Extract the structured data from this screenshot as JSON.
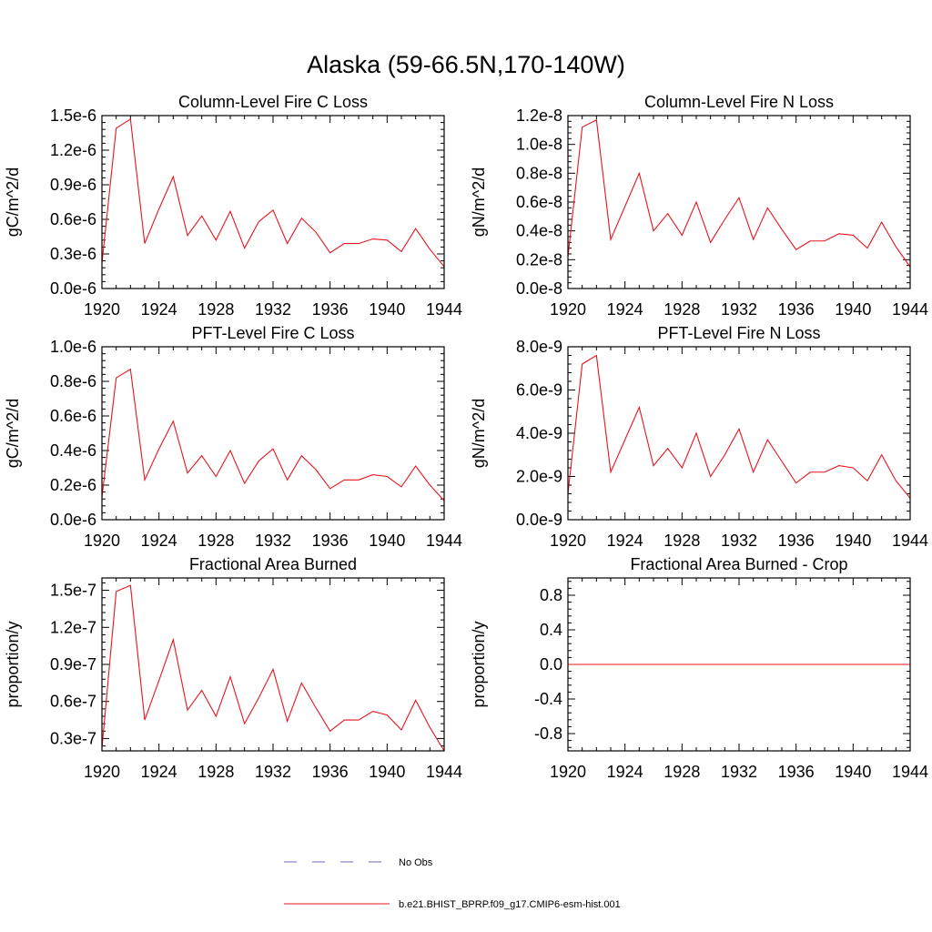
{
  "figure": {
    "title": "Alaska (59-66.5N,170-140W)"
  },
  "legend": {
    "entries": [
      {
        "label": "No Obs",
        "color": "#6b6bb8",
        "style": "dashed"
      },
      {
        "label": "b.e21.BHIST_BPRP.f09_g17.CMIP6-esm-hist.001",
        "color": "#e8141e",
        "style": "solid"
      }
    ]
  },
  "chart_data": [
    {
      "type": "line",
      "title": "Column-Level Fire C Loss",
      "ylabel": "gC/m^2/d",
      "xlim": [
        1920,
        1944
      ],
      "ylim": [
        0,
        1.5e-06
      ],
      "xticks": [
        1920,
        1924,
        1928,
        1932,
        1936,
        1940,
        1944
      ],
      "yticks": [
        0,
        3e-07,
        6e-07,
        9e-07,
        1.2e-06,
        1.5e-06
      ],
      "ytick_labels": [
        "0.0e-6",
        "0.3e-6",
        "0.6e-6",
        "0.9e-6",
        "1.2e-6",
        "1.5e-6"
      ],
      "x": [
        1920,
        1921,
        1922,
        1923,
        1924,
        1925,
        1926,
        1927,
        1928,
        1929,
        1930,
        1931,
        1932,
        1933,
        1934,
        1935,
        1936,
        1937,
        1938,
        1939,
        1940,
        1941,
        1942,
        1943,
        1944
      ],
      "series": [
        {
          "name": "b.e21.BHIST_BPRP.f09_g17.CMIP6-esm-hist.001",
          "color": "#e8141e",
          "values": [
            2.2e-07,
            1.39e-06,
            1.47e-06,
            3.9e-07,
            6.9e-07,
            9.7e-07,
            4.6e-07,
            6.3e-07,
            4.2e-07,
            6.7e-07,
            3.5e-07,
            5.8e-07,
            6.8e-07,
            3.9e-07,
            6.1e-07,
            4.9e-07,
            3.1e-07,
            3.9e-07,
            3.9e-07,
            4.3e-07,
            4.2e-07,
            3.2e-07,
            5.2e-07,
            3.4e-07,
            1.9e-07
          ]
        }
      ]
    },
    {
      "type": "line",
      "title": "Column-Level Fire N Loss",
      "ylabel": "gN/m^2/d",
      "xlim": [
        1920,
        1944
      ],
      "ylim": [
        0,
        1.2e-08
      ],
      "xticks": [
        1920,
        1924,
        1928,
        1932,
        1936,
        1940,
        1944
      ],
      "yticks": [
        0,
        2e-09,
        4e-09,
        6e-09,
        8e-09,
        1e-08,
        1.2e-08
      ],
      "ytick_labels": [
        "0.0e-8",
        "0.2e-8",
        "0.4e-8",
        "0.6e-8",
        "0.8e-8",
        "1.0e-8",
        "1.2e-8"
      ],
      "x": [
        1920,
        1921,
        1922,
        1923,
        1924,
        1925,
        1926,
        1927,
        1928,
        1929,
        1930,
        1931,
        1932,
        1933,
        1934,
        1935,
        1936,
        1937,
        1938,
        1939,
        1940,
        1941,
        1942,
        1943,
        1944
      ],
      "series": [
        {
          "name": "b.e21.BHIST_BPRP.f09_g17.CMIP6-esm-hist.001",
          "color": "#e8141e",
          "values": [
            2.2e-09,
            1.12e-08,
            1.17e-08,
            3.4e-09,
            5.7e-09,
            8e-09,
            4e-09,
            5.2e-09,
            3.7e-09,
            6e-09,
            3.2e-09,
            4.8e-09,
            6.3e-09,
            3.4e-09,
            5.6e-09,
            4.1e-09,
            2.7e-09,
            3.3e-09,
            3.3e-09,
            3.8e-09,
            3.7e-09,
            2.8e-09,
            4.6e-09,
            2.9e-09,
            1.5e-09
          ]
        }
      ]
    },
    {
      "type": "line",
      "title": "PFT-Level Fire C Loss",
      "ylabel": "gC/m^2/d",
      "xlim": [
        1920,
        1944
      ],
      "ylim": [
        0,
        1e-06
      ],
      "xticks": [
        1920,
        1924,
        1928,
        1932,
        1936,
        1940,
        1944
      ],
      "yticks": [
        0,
        2e-07,
        4e-07,
        6e-07,
        8e-07,
        1e-06
      ],
      "ytick_labels": [
        "0.0e-6",
        "0.2e-6",
        "0.4e-6",
        "0.6e-6",
        "0.8e-6",
        "1.0e-6"
      ],
      "x": [
        1920,
        1921,
        1922,
        1923,
        1924,
        1925,
        1926,
        1927,
        1928,
        1929,
        1930,
        1931,
        1932,
        1933,
        1934,
        1935,
        1936,
        1937,
        1938,
        1939,
        1940,
        1941,
        1942,
        1943,
        1944
      ],
      "series": [
        {
          "name": "b.e21.BHIST_BPRP.f09_g17.CMIP6-esm-hist.001",
          "color": "#e8141e",
          "values": [
            1.3e-07,
            8.2e-07,
            8.7e-07,
            2.3e-07,
            4.1e-07,
            5.7e-07,
            2.7e-07,
            3.7e-07,
            2.5e-07,
            4e-07,
            2.1e-07,
            3.4e-07,
            4.1e-07,
            2.3e-07,
            3.7e-07,
            2.9e-07,
            1.8e-07,
            2.3e-07,
            2.3e-07,
            2.6e-07,
            2.5e-07,
            1.9e-07,
            3.1e-07,
            2e-07,
            1.1e-07
          ]
        }
      ]
    },
    {
      "type": "line",
      "title": "PFT-Level Fire N Loss",
      "ylabel": "gN/m^2/d",
      "xlim": [
        1920,
        1944
      ],
      "ylim": [
        0,
        8e-09
      ],
      "xticks": [
        1920,
        1924,
        1928,
        1932,
        1936,
        1940,
        1944
      ],
      "yticks": [
        0,
        2e-09,
        4e-09,
        6e-09,
        8e-09
      ],
      "ytick_labels": [
        "0.0e-9",
        "2.0e-9",
        "4.0e-9",
        "6.0e-9",
        "8.0e-9"
      ],
      "x": [
        1920,
        1921,
        1922,
        1923,
        1924,
        1925,
        1926,
        1927,
        1928,
        1929,
        1930,
        1931,
        1932,
        1933,
        1934,
        1935,
        1936,
        1937,
        1938,
        1939,
        1940,
        1941,
        1942,
        1943,
        1944
      ],
      "series": [
        {
          "name": "b.e21.BHIST_BPRP.f09_g17.CMIP6-esm-hist.001",
          "color": "#e8141e",
          "values": [
            1.2e-09,
            7.2e-09,
            7.6e-09,
            2.2e-09,
            3.7e-09,
            5.2e-09,
            2.5e-09,
            3.3e-09,
            2.4e-09,
            4e-09,
            2e-09,
            3e-09,
            4.2e-09,
            2.2e-09,
            3.7e-09,
            2.7e-09,
            1.7e-09,
            2.2e-09,
            2.2e-09,
            2.5e-09,
            2.4e-09,
            1.8e-09,
            3e-09,
            1.8e-09,
            1e-09
          ]
        }
      ]
    },
    {
      "type": "line",
      "title": "Fractional Area Burned",
      "ylabel": "proportion/y",
      "xlim": [
        1920,
        1944
      ],
      "ylim": [
        2e-08,
        1.6e-07
      ],
      "xticks": [
        1920,
        1924,
        1928,
        1932,
        1936,
        1940,
        1944
      ],
      "yticks": [
        3e-08,
        6e-08,
        9e-08,
        1.2e-07,
        1.5e-07
      ],
      "ytick_labels": [
        "0.3e-7",
        "0.6e-7",
        "0.9e-7",
        "1.2e-7",
        "1.5e-7"
      ],
      "x": [
        1920,
        1921,
        1922,
        1923,
        1924,
        1925,
        1926,
        1927,
        1928,
        1929,
        1930,
        1931,
        1932,
        1933,
        1934,
        1935,
        1936,
        1937,
        1938,
        1939,
        1940,
        1941,
        1942,
        1943,
        1944
      ],
      "series": [
        {
          "name": "b.e21.BHIST_BPRP.f09_g17.CMIP6-esm-hist.001",
          "color": "#e8141e",
          "values": [
            2.2e-08,
            1.49e-07,
            1.54e-07,
            4.5e-08,
            7.7e-08,
            1.1e-07,
            5.3e-08,
            6.9e-08,
            4.8e-08,
            8e-08,
            4.2e-08,
            6.3e-08,
            8.6e-08,
            4.4e-08,
            7.5e-08,
            5.5e-08,
            3.6e-08,
            4.5e-08,
            4.5e-08,
            5.2e-08,
            4.9e-08,
            3.7e-08,
            6.1e-08,
            3.9e-08,
            2e-08
          ]
        }
      ]
    },
    {
      "type": "line",
      "title": "Fractional Area Burned - Crop",
      "ylabel": "proportion/y",
      "xlim": [
        1920,
        1944
      ],
      "ylim": [
        -1.0,
        1.0
      ],
      "xticks": [
        1920,
        1924,
        1928,
        1932,
        1936,
        1940,
        1944
      ],
      "yticks": [
        -0.8,
        -0.4,
        0.0,
        0.4,
        0.8
      ],
      "ytick_labels": [
        "-0.8",
        "-0.4",
        "0.0",
        "0.4",
        "0.8"
      ],
      "x": [
        1920,
        1921,
        1922,
        1923,
        1924,
        1925,
        1926,
        1927,
        1928,
        1929,
        1930,
        1931,
        1932,
        1933,
        1934,
        1935,
        1936,
        1937,
        1938,
        1939,
        1940,
        1941,
        1942,
        1943,
        1944
      ],
      "series": [
        {
          "name": "b.e21.BHIST_BPRP.f09_g17.CMIP6-esm-hist.001",
          "color": "#e8141e",
          "values": [
            0,
            0,
            0,
            0,
            0,
            0,
            0,
            0,
            0,
            0,
            0,
            0,
            0,
            0,
            0,
            0,
            0,
            0,
            0,
            0,
            0,
            0,
            0,
            0,
            0
          ]
        }
      ]
    }
  ]
}
